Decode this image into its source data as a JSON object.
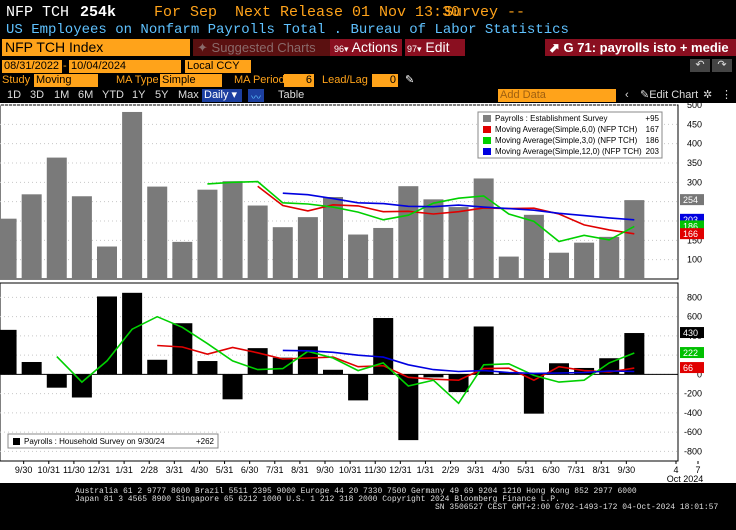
{
  "header": {
    "ticker": "NFP TCH",
    "value": "254k",
    "period": "For Sep",
    "next_release": "Next Release 01 Nov 13:30",
    "survey": "Survey --",
    "description": "US Employees on Nonfarm Payrolls Total . Bureau of Labor Statistics"
  },
  "toolbar": {
    "security": "NFP TCH Index",
    "suggested": "Suggested Charts",
    "actions": "Actions",
    "edit": "Edit",
    "chart_name": "G 71: payrolls isto + medie"
  },
  "date_row": {
    "from": "08/31/2022",
    "to": "10/04/2024",
    "currency": "Local CCY"
  },
  "study_row": {
    "study_label": "Study",
    "study_value": "Moving Aver",
    "ma_type_label": "MA Type",
    "ma_type_value": "Simple",
    "ma_period_label": "MA Period",
    "ma_period_value": "6",
    "lead_label": "Lead/Lag",
    "lead_value": "0"
  },
  "range_row": {
    "ranges": [
      "1D",
      "3D",
      "1M",
      "6M",
      "YTD",
      "1Y",
      "5Y",
      "Max"
    ],
    "frequency": "Daily",
    "table": "Table",
    "add_data": "Add Data",
    "edit_chart": "Edit Chart"
  },
  "legend_top": {
    "items": [
      {
        "label": "Payrolls : Establishment Survey",
        "value": "+95",
        "color": "#808080"
      },
      {
        "label": "Moving Average(Simple,6,0) (NFP TCH)",
        "value": "167",
        "color": "#e00000"
      },
      {
        "label": "Moving Average(Simple,3,0) (NFP TCH)",
        "value": "186",
        "color": "#00d000"
      },
      {
        "label": "Moving Average(Simple,12,0) (NFP TCH)",
        "value": "203",
        "color": "#0000e0"
      }
    ]
  },
  "legend_bottom": {
    "label": "Payrolls : Household Survey on 9/30/24",
    "value": "+262"
  },
  "chart_data": [
    {
      "type": "bar",
      "categories": [
        "8/31",
        "9/30",
        "10/31",
        "11/30",
        "12/31",
        "1/31",
        "2/28",
        "3/31",
        "4/30",
        "5/31",
        "6/30",
        "7/31",
        "8/31",
        "9/30",
        "10/31",
        "11/30",
        "12/31",
        "1/31",
        "2/29",
        "3/31",
        "4/30",
        "5/31",
        "6/30",
        "7/31",
        "8/31",
        "9/30"
      ],
      "series": [
        {
          "name": "Payrolls : Establishment Survey",
          "color": "#808080",
          "values": [
            206,
            269,
            364,
            264,
            134,
            482,
            289,
            146,
            281,
            303,
            240,
            184,
            210,
            262,
            165,
            182,
            290,
            256,
            236,
            310,
            108,
            216,
            118,
            144,
            159,
            254
          ]
        },
        {
          "name": "Moving Average(Simple,6,0) (NFP TCH)",
          "color": "#e00000",
          "values": [
            null,
            null,
            null,
            null,
            null,
            null,
            null,
            null,
            null,
            null,
            290,
            240,
            226,
            242,
            239,
            224,
            225,
            218,
            224,
            234,
            232,
            233,
            218,
            190,
            177,
            167
          ]
        },
        {
          "name": "Moving Average(Simple,3,0) (NFP TCH)",
          "color": "#00d000",
          "values": [
            null,
            null,
            null,
            null,
            null,
            null,
            null,
            null,
            296,
            300,
            302,
            247,
            244,
            236,
            223,
            203,
            215,
            246,
            259,
            265,
            218,
            199,
            147,
            163,
            151,
            186
          ]
        },
        {
          "name": "Moving Average(Simple,12,0) (NFP TCH)",
          "color": "#0000e0",
          "values": [
            null,
            null,
            null,
            null,
            null,
            null,
            null,
            null,
            null,
            null,
            null,
            272,
            268,
            258,
            247,
            245,
            238,
            237,
            241,
            236,
            232,
            228,
            220,
            214,
            208,
            203
          ]
        }
      ],
      "ylim": [
        50,
        500
      ],
      "yticks": [
        100,
        150,
        200,
        250,
        300,
        350,
        400,
        450,
        500
      ],
      "last_labels": [
        "254",
        "203",
        "186",
        "166"
      ]
    },
    {
      "type": "bar",
      "categories": [
        "8/31",
        "9/30",
        "10/31",
        "11/30",
        "12/31",
        "1/31",
        "2/28",
        "3/31",
        "4/30",
        "5/31",
        "6/30",
        "7/31",
        "8/31",
        "9/30",
        "10/31",
        "11/30",
        "12/31",
        "1/31",
        "2/29",
        "3/31",
        "4/30",
        "5/31",
        "6/30",
        "7/31",
        "8/31",
        "9/30"
      ],
      "series": [
        {
          "name": "Payrolls : Household Survey",
          "color": "#000000",
          "values": [
            463,
            129,
            -138,
            -240,
            810,
            848,
            152,
            532,
            139,
            -259,
            273,
            174,
            291,
            48,
            -270,
            586,
            -683,
            -31,
            -184,
            498,
            25,
            -408,
            116,
            67,
            168,
            430
          ]
        },
        {
          "name": "Moving Average(Simple,6,0)",
          "color": "#e00000",
          "values": [
            null,
            null,
            null,
            null,
            null,
            null,
            300,
            285,
            210,
            280,
            225,
            160,
            170,
            180,
            80,
            90,
            -30,
            -50,
            -60,
            60,
            65,
            -60,
            80,
            40,
            25,
            66
          ]
        },
        {
          "name": "Moving Average(Simple,3,0)",
          "color": "#00d000",
          "values": [
            null,
            null,
            185,
            -80,
            140,
            470,
            600,
            490,
            320,
            140,
            50,
            60,
            240,
            170,
            40,
            120,
            -120,
            -60,
            -300,
            100,
            110,
            -10,
            -80,
            -60,
            120,
            222
          ]
        },
        {
          "name": "Moving Average(Simple,12,0)",
          "color": "#0000e0",
          "values": [
            null,
            null,
            null,
            null,
            null,
            null,
            null,
            null,
            null,
            null,
            null,
            250,
            245,
            230,
            200,
            180,
            100,
            50,
            30,
            40,
            20,
            10,
            15,
            20,
            35,
            30
          ]
        }
      ],
      "ylim": [
        -900,
        950
      ],
      "yticks": [
        -800,
        -600,
        -400,
        -200,
        0,
        200,
        400,
        600,
        800
      ],
      "last_labels": [
        "430",
        "222",
        "66"
      ]
    }
  ],
  "xaxis": {
    "ticks": [
      "9/30",
      "10/31",
      "11/30",
      "12/31",
      "1/31",
      "2/28",
      "3/31",
      "4/30",
      "5/31",
      "6/30",
      "7/31",
      "8/31",
      "9/30",
      "10/31",
      "11/30",
      "12/31",
      "1/31",
      "2/29",
      "3/31",
      "4/30",
      "5/31",
      "6/30",
      "7/31",
      "8/31",
      "9/30",
      "4",
      "7"
    ],
    "year_label": "Oct 2024"
  },
  "footer": {
    "line1": "Australia 61 2 9777 8600 Brazil 5511 2395 9000 Europe 44 20 7330 7500 Germany 49 69 9204 1210 Hong Kong 852 2977 6000",
    "line2": "Japan 81 3 4565 8900       Singapore 65 6212 1000       U.S. 1 212 318 2000           Copyright 2024 Bloomberg Finance L.P.",
    "line3": "SN 3506527 CEST GMT+2:00 G702-1493-172 04-Oct-2024 18:01:57"
  },
  "colors": {
    "amber": "#ffa31a",
    "cyan": "#5fc2ff",
    "red_button": "#8a0f20",
    "grey_bar": "#808080"
  }
}
